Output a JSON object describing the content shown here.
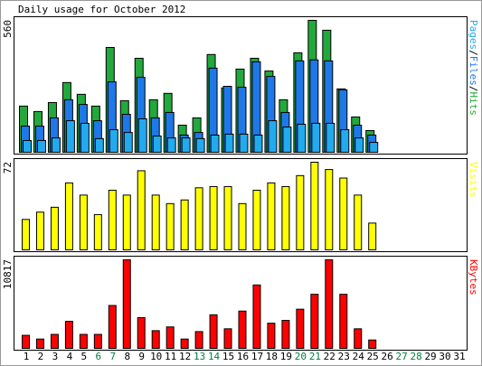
{
  "chart_data": {
    "type": "bar",
    "title": "Daily usage for October 2012",
    "categories": [
      "1",
      "2",
      "3",
      "4",
      "5",
      "6",
      "7",
      "8",
      "9",
      "10",
      "11",
      "12",
      "13",
      "14",
      "15",
      "16",
      "17",
      "18",
      "19",
      "20",
      "21",
      "22",
      "23",
      "24",
      "25",
      "26",
      "27",
      "28",
      "29",
      "30",
      "31"
    ],
    "category_colors": [
      "#000",
      "#000",
      "#000",
      "#000",
      "#000",
      "#008040",
      "#008040",
      "#000",
      "#000",
      "#000",
      "#000",
      "#000",
      "#008040",
      "#008040",
      "#000",
      "#000",
      "#000",
      "#000",
      "#000",
      "#008040",
      "#008040",
      "#000",
      "#000",
      "#000",
      "#000",
      "#000",
      "#008040",
      "#008040",
      "#000",
      "#000",
      "#000"
    ],
    "panels": [
      {
        "ylim": [
          0,
          560
        ],
        "yticks": [
          560
        ],
        "legend_separator": "/",
        "series": [
          {
            "name": "Hits",
            "color": "#22a83c",
            "values": [
              196,
              173,
              211,
              296,
              246,
              196,
              445,
              219,
              399,
              223,
              250,
              115,
              146,
              415,
              273,
              353,
              399,
              345,
              223,
              422,
              560,
              518,
              269,
              150,
              92,
              null,
              null,
              null,
              null,
              null,
              null
            ]
          },
          {
            "name": "Files",
            "color": "#1e78e8",
            "values": [
              111,
              111,
              146,
              223,
              203,
              134,
              299,
              161,
              318,
              146,
              169,
              73,
              84,
              357,
              280,
              276,
              384,
              322,
              169,
              388,
              392,
              388,
              265,
              115,
              73,
              null,
              null,
              null,
              null,
              null,
              null
            ]
          },
          {
            "name": "Pages",
            "color": "#22aaee",
            "values": [
              50,
              50,
              61,
              134,
              123,
              58,
              96,
              84,
              142,
              69,
              61,
              61,
              58,
              73,
              77,
              77,
              73,
              134,
              107,
              119,
              123,
              123,
              96,
              61,
              42,
              null,
              null,
              null,
              null,
              null,
              null
            ]
          }
        ]
      },
      {
        "ylim": [
          0,
          72
        ],
        "yticks": [
          72
        ],
        "series": [
          {
            "name": "Visits",
            "color": "#ffff00",
            "values": [
              25,
              31,
              35,
              55,
              45,
              29,
              49,
              45,
              65,
              45,
              38,
              41,
              51,
              52,
              52,
              38,
              49,
              55,
              52,
              61,
              72,
              66,
              59,
              45,
              22,
              null,
              null,
              null,
              null,
              null,
              null
            ]
          }
        ]
      },
      {
        "ylim": [
          0,
          10817
        ],
        "yticks": [
          10817
        ],
        "series": [
          {
            "name": "KBytes",
            "color": "#ff0000",
            "values": [
              1594,
              1139,
              1708,
              3302,
              1708,
              1708,
              5239,
              10817,
              3758,
              2164,
              2620,
              1139,
              2050,
              4100,
              2392,
              4556,
              7745,
              3075,
              3417,
              4784,
              6606,
              10817,
              6606,
              2392,
              1025,
              null,
              null,
              null,
              null,
              null,
              null
            ]
          }
        ]
      }
    ]
  }
}
